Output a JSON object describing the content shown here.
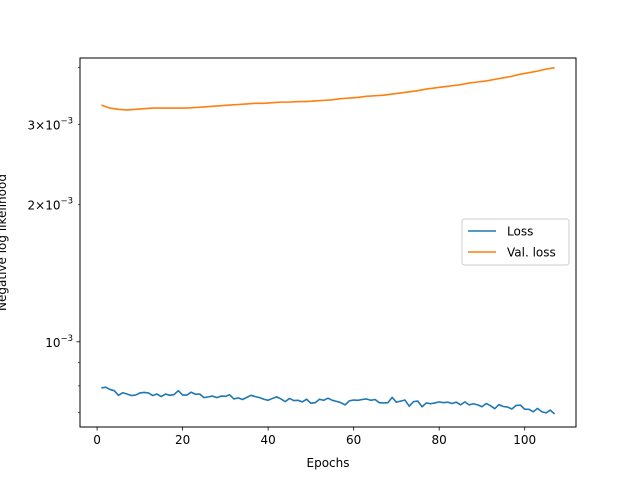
{
  "chart_data": {
    "type": "line",
    "xlabel": "Epochs",
    "ylabel": "Negative log likelihood",
    "xlim": [
      -4,
      112
    ],
    "ylim": [
      0.00065,
      0.0042
    ],
    "yscale": "log",
    "grid": false,
    "legend_position": "center-right",
    "x_ticks": [
      0,
      20,
      40,
      60,
      80,
      100
    ],
    "x_tick_labels": [
      "0",
      "20",
      "40",
      "60",
      "80",
      "100"
    ],
    "y_major_ticks": [
      0.001
    ],
    "y_major_tick_labels": [
      {
        "base": "10",
        "exp": "−3"
      }
    ],
    "y_minor_ticks": [
      0.0007,
      0.0008,
      0.0009,
      0.002,
      0.003,
      0.004
    ],
    "y_minor_labeled": [
      {
        "value": 0.002,
        "mantissa": "2",
        "base": "10",
        "exp": "−3"
      },
      {
        "value": 0.003,
        "mantissa": "3",
        "base": "10",
        "exp": "−3"
      }
    ],
    "series": [
      {
        "name": "Loss",
        "color": "#1f77b4",
        "x": [
          1,
          2,
          3,
          4,
          5,
          6,
          7,
          8,
          9,
          10,
          11,
          12,
          13,
          14,
          15,
          16,
          17,
          18,
          19,
          20,
          21,
          22,
          23,
          24,
          25,
          26,
          27,
          28,
          29,
          30,
          31,
          32,
          33,
          34,
          35,
          36,
          37,
          38,
          39,
          40,
          41,
          42,
          43,
          44,
          45,
          46,
          47,
          48,
          49,
          50,
          51,
          52,
          53,
          54,
          55,
          56,
          57,
          58,
          59,
          60,
          61,
          62,
          63,
          64,
          65,
          66,
          67,
          68,
          69,
          70,
          71,
          72,
          73,
          74,
          75,
          76,
          77,
          78,
          79,
          80,
          81,
          82,
          83,
          84,
          85,
          86,
          87,
          88,
          89,
          90,
          91,
          92,
          93,
          94,
          95,
          96,
          97,
          98,
          99,
          100,
          101,
          102,
          103,
          104,
          105,
          106,
          107
        ],
        "values": [
          0.000792,
          0.000795,
          0.000786,
          0.000781,
          0.000763,
          0.000773,
          0.000768,
          0.000762,
          0.000764,
          0.000772,
          0.000774,
          0.000772,
          0.000762,
          0.000768,
          0.000758,
          0.000768,
          0.000763,
          0.000766,
          0.000781,
          0.000764,
          0.000764,
          0.000775,
          0.000767,
          0.000768,
          0.000754,
          0.000757,
          0.00076,
          0.000754,
          0.00076,
          0.000759,
          0.000765,
          0.000749,
          0.000753,
          0.000747,
          0.000755,
          0.000763,
          0.000758,
          0.000754,
          0.000748,
          0.000744,
          0.000751,
          0.000757,
          0.000749,
          0.000739,
          0.000751,
          0.000743,
          0.000744,
          0.000738,
          0.000748,
          0.000733,
          0.000735,
          0.000748,
          0.000744,
          0.000752,
          0.000744,
          0.00074,
          0.000735,
          0.000727,
          0.000742,
          0.000745,
          0.000744,
          0.000747,
          0.000749,
          0.000744,
          0.000747,
          0.000735,
          0.000734,
          0.000735,
          0.000755,
          0.000737,
          0.000741,
          0.000745,
          0.000722,
          0.000739,
          0.000741,
          0.00072,
          0.000734,
          0.000731,
          0.000734,
          0.000738,
          0.000735,
          0.000737,
          0.000732,
          0.000737,
          0.000727,
          0.000738,
          0.000727,
          0.000731,
          0.000727,
          0.00072,
          0.000732,
          0.000724,
          0.000713,
          0.000728,
          0.000721,
          0.000719,
          0.000712,
          0.000725,
          0.000726,
          0.000711,
          0.000711,
          0.000702,
          0.000714,
          0.000702,
          0.000698,
          0.000708,
          0.000694
        ]
      },
      {
        "name": "Val. loss",
        "color": "#ff7f0e",
        "x": [
          1,
          3,
          5,
          7,
          9,
          11,
          13,
          15,
          17,
          19,
          21,
          23,
          25,
          27,
          29,
          31,
          33,
          35,
          37,
          39,
          41,
          43,
          45,
          47,
          49,
          51,
          53,
          55,
          57,
          59,
          61,
          63,
          65,
          67,
          69,
          71,
          73,
          75,
          77,
          79,
          81,
          83,
          85,
          87,
          89,
          91,
          93,
          95,
          97,
          99,
          101,
          103,
          105,
          107
        ],
        "values": [
          0.00331,
          0.00326,
          0.00324,
          0.00323,
          0.00324,
          0.00325,
          0.00326,
          0.00326,
          0.00326,
          0.00326,
          0.00326,
          0.00327,
          0.00328,
          0.00329,
          0.0033,
          0.00331,
          0.00332,
          0.00333,
          0.00334,
          0.00334,
          0.00335,
          0.00336,
          0.00336,
          0.00337,
          0.00337,
          0.00338,
          0.00339,
          0.0034,
          0.00342,
          0.00343,
          0.00344,
          0.00346,
          0.00347,
          0.00348,
          0.0035,
          0.00352,
          0.00354,
          0.00356,
          0.00359,
          0.00361,
          0.00363,
          0.00365,
          0.00367,
          0.0037,
          0.00372,
          0.00374,
          0.00377,
          0.0038,
          0.00383,
          0.00387,
          0.0039,
          0.00393,
          0.00397,
          0.004
        ]
      }
    ]
  }
}
